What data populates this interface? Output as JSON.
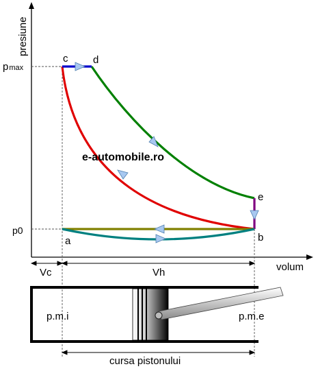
{
  "axes": {
    "y_label": "presiune",
    "x_label": "volum",
    "p_max": "p",
    "p_max_sub": "max",
    "p0": "p0"
  },
  "points": {
    "a": "a",
    "b": "b",
    "c": "c",
    "d": "d",
    "e": "e"
  },
  "watermark": "e-automobile.ro",
  "dimensions": {
    "vc": "Vc",
    "vh": "Vh",
    "stroke": "cursa pistonului"
  },
  "cylinder": {
    "tdc": "p.m.i",
    "bdc": "p.m.e"
  },
  "colors": {
    "combustion": "#0000cc",
    "expansion": "#008000",
    "compression": "#e00000",
    "exhaust_valve": "#800080",
    "exhaust_stroke": "#808000",
    "intake": "#008080",
    "arrow": "#a8c8f0"
  }
}
